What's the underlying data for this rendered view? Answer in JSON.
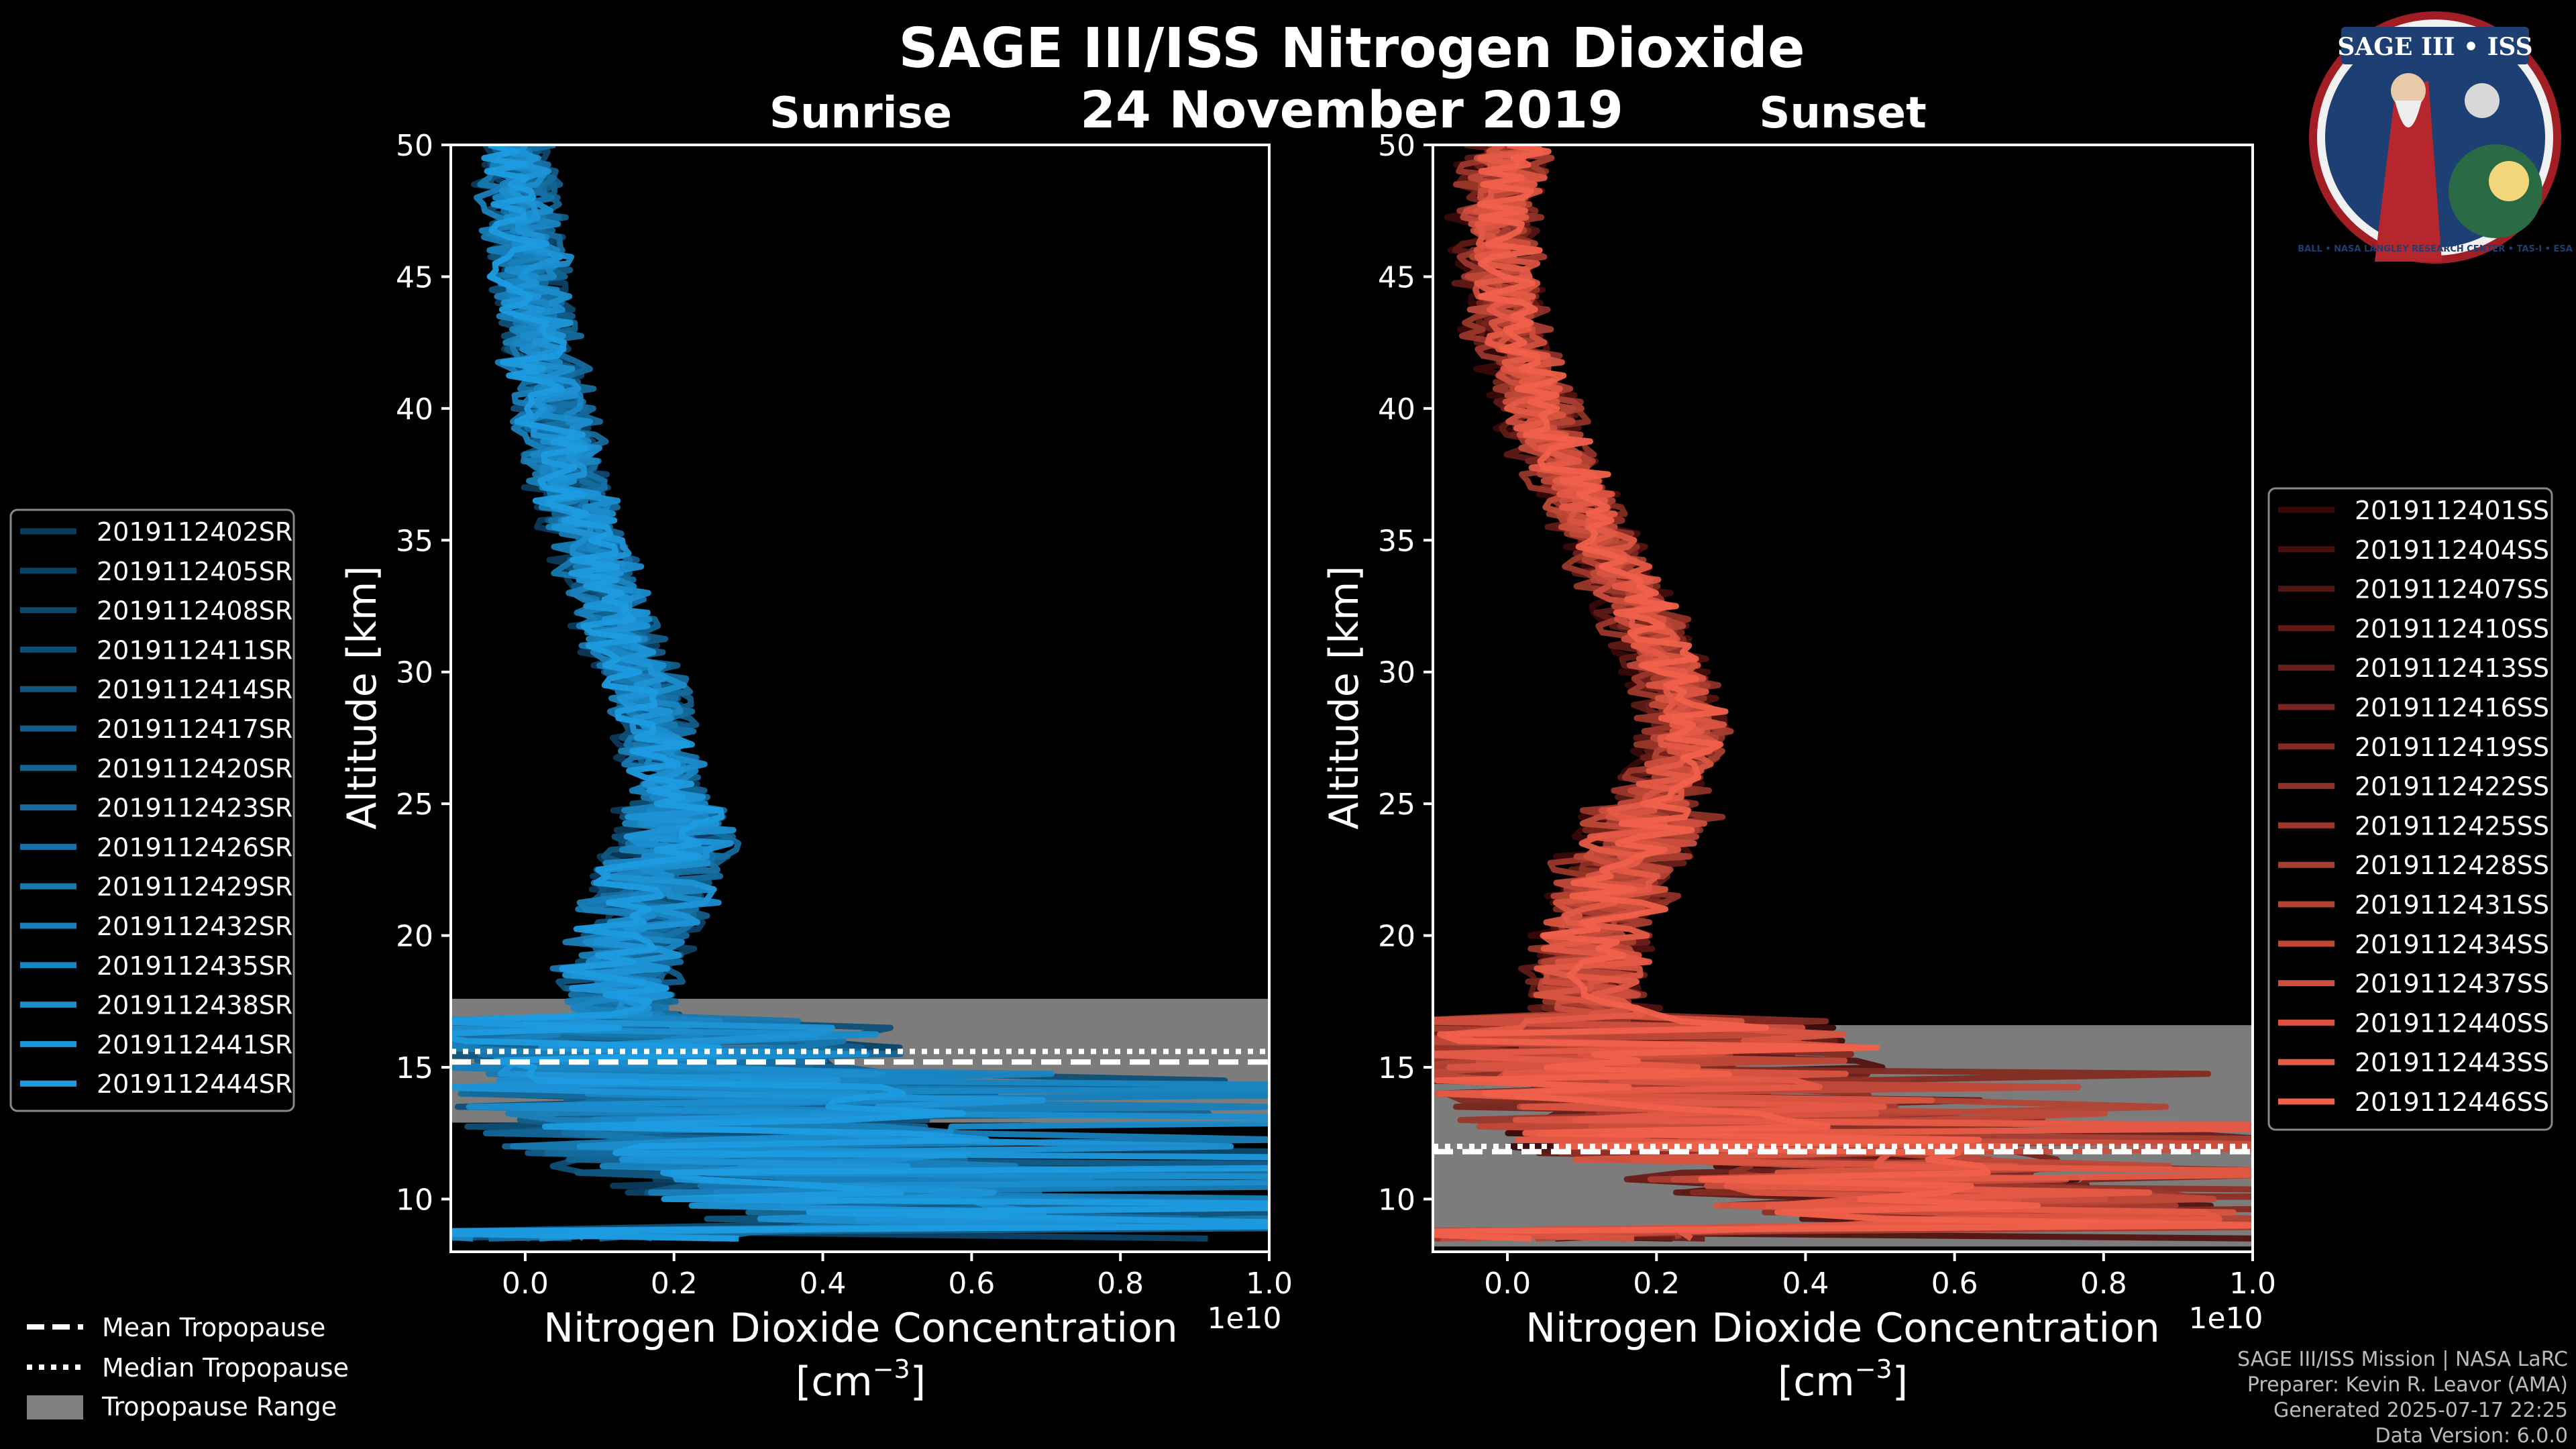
{
  "header": {
    "title": "SAGE III/ISS Nitrogen Dioxide",
    "date": "24 November 2019"
  },
  "logo": {
    "text": "SAGE III • ISS",
    "ring_text": "BALL • NASA LANGLEY RESEARCH CENTER • TAS-I • ESA"
  },
  "footer": {
    "line1": "SAGE III/ISS Mission | NASA LaRC",
    "line2": "Preparer: Kevin R. Leavor (AMA)",
    "line3": "Generated 2025-07-17 22:25",
    "line4": "Data Version: 6.0.0"
  },
  "tropopause_legend": {
    "mean": "Mean Tropopause",
    "median": "Median Tropopause",
    "range": "Tropopause Range"
  },
  "chart_data": [
    {
      "type": "line",
      "title": "Sunrise",
      "xlabel": "Nitrogen Dioxide Concentration",
      "xlabel_unit": "[cm",
      "xlabel_exp": "−3",
      "xlabel_close": "]",
      "ylabel": "Altitude [km]",
      "x_multiplier": "1e10",
      "xlim": [
        -0.1,
        1.0
      ],
      "ylim": [
        8,
        50
      ],
      "x_ticks": [
        "0.0",
        "0.2",
        "0.4",
        "0.6",
        "0.8",
        "1.0"
      ],
      "x_tick_values": [
        0.0,
        0.2,
        0.4,
        0.6,
        0.8,
        1.0
      ],
      "y_ticks": [
        "10",
        "15",
        "20",
        "25",
        "30",
        "35",
        "40",
        "45",
        "50"
      ],
      "y_tick_values": [
        10,
        15,
        20,
        25,
        30,
        35,
        40,
        45,
        50
      ],
      "tropopause": {
        "range": [
          12.9,
          17.6
        ],
        "mean": 15.2,
        "median": 15.6
      },
      "color_dark": "#0b3a5a",
      "color_light": "#1e9be0",
      "legend_position": "left",
      "series_names": [
        "2019112402SR",
        "2019112405SR",
        "2019112408SR",
        "2019112411SR",
        "2019112414SR",
        "2019112417SR",
        "2019112420SR",
        "2019112423SR",
        "2019112426SR",
        "2019112429SR",
        "2019112432SR",
        "2019112435SR",
        "2019112438SR",
        "2019112441SR",
        "2019112444SR"
      ],
      "mean_profile": [
        [
          0.6,
          9
        ],
        [
          0.3,
          12
        ],
        [
          0.18,
          15
        ],
        [
          0.12,
          18
        ],
        [
          0.15,
          20
        ],
        [
          0.2,
          24
        ],
        [
          0.18,
          28
        ],
        [
          0.12,
          32
        ],
        [
          0.06,
          37
        ],
        [
          0.02,
          42
        ],
        [
          0.0,
          46
        ],
        [
          -0.01,
          50
        ]
      ]
    },
    {
      "type": "line",
      "title": "Sunset",
      "xlabel": "Nitrogen Dioxide Concentration",
      "xlabel_unit": "[cm",
      "xlabel_exp": "−3",
      "xlabel_close": "]",
      "ylabel": "Altitude [km]",
      "x_multiplier": "1e10",
      "xlim": [
        -0.1,
        1.0
      ],
      "ylim": [
        8,
        50
      ],
      "x_ticks": [
        "0.0",
        "0.2",
        "0.4",
        "0.6",
        "0.8",
        "1.0"
      ],
      "x_tick_values": [
        0.0,
        0.2,
        0.4,
        0.6,
        0.8,
        1.0
      ],
      "y_ticks": [
        "10",
        "15",
        "20",
        "25",
        "30",
        "35",
        "40",
        "45",
        "50"
      ],
      "y_tick_values": [
        10,
        15,
        20,
        25,
        30,
        35,
        40,
        45,
        50
      ],
      "tropopause": {
        "range": [
          8.2,
          16.6
        ],
        "mean": 11.8,
        "median": 12.0
      },
      "color_dark": "#3a0808",
      "color_light": "#f0604a",
      "legend_position": "right",
      "series_names": [
        "2019112401SS",
        "2019112404SS",
        "2019112407SS",
        "2019112410SS",
        "2019112413SS",
        "2019112416SS",
        "2019112419SS",
        "2019112422SS",
        "2019112425SS",
        "2019112428SS",
        "2019112431SS",
        "2019112434SS",
        "2019112437SS",
        "2019112440SS",
        "2019112443SS",
        "2019112446SS"
      ],
      "mean_profile": [
        [
          0.7,
          9
        ],
        [
          0.35,
          12
        ],
        [
          0.15,
          15
        ],
        [
          0.1,
          18
        ],
        [
          0.12,
          21
        ],
        [
          0.2,
          25
        ],
        [
          0.24,
          28
        ],
        [
          0.2,
          31
        ],
        [
          0.12,
          35
        ],
        [
          0.05,
          39
        ],
        [
          0.0,
          43
        ],
        [
          -0.02,
          47
        ],
        [
          0.0,
          50
        ]
      ]
    }
  ]
}
